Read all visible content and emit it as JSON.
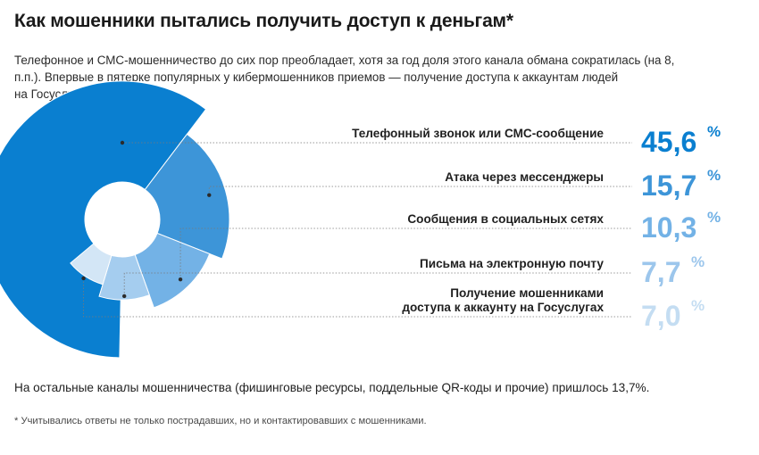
{
  "header": {
    "title": "Как мошенники пытались получить доступ к деньгам*",
    "subtitle": "Телефонное и СМС-мошенничество до сих пор преобладает, хотя за год доля этого канала обмана сократилась (на 8,\nп.п.). Впервые в пятерке популярных у кибермошенников приемов — получение доступа к аккаунтам людей\nна Госуслугах."
  },
  "chart_data": {
    "type": "pie",
    "categories": [
      "Телефонный звонок или СМС-сообщение",
      "Атака через мессенджеры",
      "Сообщения в социальных сетях",
      "Письма на электронную почту",
      "Получение мошенниками доступа к аккаунту на Госуслугах"
    ],
    "label_lines": [
      [
        "Телефонный звонок или СМС-сообщение"
      ],
      [
        "Атака через мессенджеры"
      ],
      [
        "Сообщения в социальных сетях"
      ],
      [
        "Письма на электронную почту"
      ],
      [
        "Получение мошенниками",
        "доступа к аккаунту на Госуслугах"
      ]
    ],
    "values": [
      45.6,
      15.7,
      10.3,
      7.7,
      7.0
    ],
    "value_labels": [
      "45,6",
      "15,7",
      "10,3",
      "7,7",
      "7,0"
    ],
    "unit": "%",
    "colors": [
      "#0a7fd0",
      "#3d95d8",
      "#73b2e6",
      "#a5cdef",
      "#d3e6f6"
    ],
    "label_color": "#1f1f1f"
  },
  "footer": {
    "note": "На остальные каналы мошенничества (фишинговые ресурсы, поддельные QR-коды и прочие) пришлось 13,7%.",
    "footnote": "* Учитывались ответы не только пострадавших, но и контактировавших с мошенниками."
  }
}
